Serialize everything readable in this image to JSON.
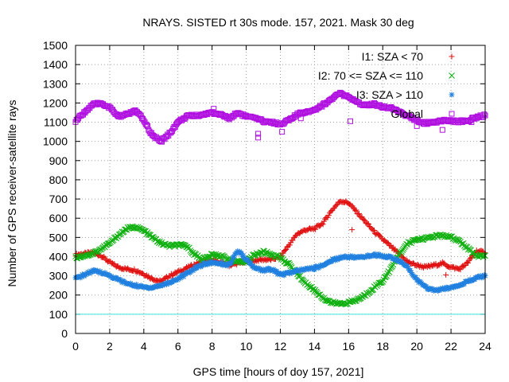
{
  "chart_data": {
    "type": "scatter",
    "title": "NRAYS. SISTED rt 30s mode. 157, 2021. Mask 30 deg",
    "xlabel": "GPS time [hours of doy 157, 2021]",
    "ylabel": "Number of GPS receiver-satellite rays",
    "xlim": [
      0,
      24
    ],
    "ylim": [
      0,
      1500
    ],
    "x_ticks": [
      0,
      2,
      4,
      6,
      8,
      10,
      12,
      14,
      16,
      18,
      20,
      22,
      24
    ],
    "y_ticks": [
      0,
      100,
      200,
      300,
      400,
      500,
      600,
      700,
      800,
      900,
      1000,
      1100,
      1200,
      1300,
      1400,
      1500
    ],
    "grid": true,
    "legend_position": "top-right",
    "reference_line": {
      "y": 100,
      "color": "#40e0e0"
    },
    "series": [
      {
        "name": "I1: SZA < 70",
        "marker": "+",
        "color": "#e01010",
        "points": [
          [
            0,
            410
          ],
          [
            0.5,
            415
          ],
          [
            1,
            420
          ],
          [
            1.5,
            405
          ],
          [
            2,
            370
          ],
          [
            2.5,
            345
          ],
          [
            3,
            335
          ],
          [
            3.5,
            330
          ],
          [
            4,
            310
          ],
          [
            4.5,
            285
          ],
          [
            5,
            270
          ],
          [
            5.5,
            300
          ],
          [
            6,
            320
          ],
          [
            6.5,
            340
          ],
          [
            7,
            360
          ],
          [
            7.5,
            375
          ],
          [
            8,
            380
          ],
          [
            8.5,
            370
          ],
          [
            9,
            355
          ],
          [
            9.5,
            365
          ],
          [
            10,
            375
          ],
          [
            10.5,
            380
          ],
          [
            11,
            385
          ],
          [
            11.5,
            385
          ],
          [
            12,
            400
          ],
          [
            12.5,
            460
          ],
          [
            13,
            520
          ],
          [
            13.5,
            540
          ],
          [
            14,
            545
          ],
          [
            14.5,
            575
          ],
          [
            15,
            640
          ],
          [
            15.5,
            690
          ],
          [
            16,
            680
          ],
          [
            16.5,
            630
          ],
          [
            17,
            580
          ],
          [
            17.5,
            530
          ],
          [
            18,
            490
          ],
          [
            18.5,
            450
          ],
          [
            19,
            410
          ],
          [
            19.5,
            370
          ],
          [
            20,
            355
          ],
          [
            20.5,
            345
          ],
          [
            21,
            355
          ],
          [
            21.5,
            365
          ],
          [
            22,
            345
          ],
          [
            22.5,
            335
          ],
          [
            23,
            370
          ],
          [
            23.5,
            430
          ],
          [
            24,
            420
          ]
        ],
        "outliers": [
          [
            16.2,
            540
          ],
          [
            21.7,
            305
          ]
        ]
      },
      {
        "name": "I2: 70 <= SZA <= 110",
        "marker": "x",
        "color": "#10b010",
        "points": [
          [
            0,
            395
          ],
          [
            0.5,
            405
          ],
          [
            1,
            415
          ],
          [
            1.5,
            440
          ],
          [
            2,
            470
          ],
          [
            2.5,
            510
          ],
          [
            3,
            545
          ],
          [
            3.5,
            555
          ],
          [
            4,
            535
          ],
          [
            4.5,
            500
          ],
          [
            5,
            470
          ],
          [
            5.5,
            455
          ],
          [
            6,
            460
          ],
          [
            6.5,
            455
          ],
          [
            7,
            410
          ],
          [
            7.5,
            385
          ],
          [
            8,
            410
          ],
          [
            8.5,
            405
          ],
          [
            9,
            385
          ],
          [
            9.5,
            370
          ],
          [
            10,
            375
          ],
          [
            10.5,
            410
          ],
          [
            11,
            425
          ],
          [
            11.5,
            410
          ],
          [
            12,
            395
          ],
          [
            12.5,
            360
          ],
          [
            13,
            310
          ],
          [
            13.5,
            260
          ],
          [
            14,
            225
          ],
          [
            14.5,
            185
          ],
          [
            15,
            160
          ],
          [
            15.5,
            155
          ],
          [
            16,
            160
          ],
          [
            16.5,
            175
          ],
          [
            17,
            200
          ],
          [
            17.5,
            240
          ],
          [
            18,
            275
          ],
          [
            18.5,
            340
          ],
          [
            19,
            420
          ],
          [
            19.5,
            470
          ],
          [
            20,
            490
          ],
          [
            20.5,
            495
          ],
          [
            21,
            505
          ],
          [
            21.5,
            510
          ],
          [
            22,
            500
          ],
          [
            22.5,
            480
          ],
          [
            23,
            440
          ],
          [
            23.5,
            405
          ],
          [
            24,
            405
          ]
        ]
      },
      {
        "name": "I3: SZA > 110",
        "marker": "*",
        "color": "#2080e0",
        "points": [
          [
            0,
            285
          ],
          [
            0.5,
            305
          ],
          [
            1,
            325
          ],
          [
            1.5,
            320
          ],
          [
            2,
            300
          ],
          [
            2.5,
            280
          ],
          [
            3,
            260
          ],
          [
            3.5,
            250
          ],
          [
            4,
            240
          ],
          [
            4.5,
            240
          ],
          [
            5,
            250
          ],
          [
            5.5,
            265
          ],
          [
            6,
            285
          ],
          [
            6.5,
            310
          ],
          [
            7,
            340
          ],
          [
            7.5,
            360
          ],
          [
            8,
            370
          ],
          [
            8.5,
            365
          ],
          [
            9,
            355
          ],
          [
            9.5,
            430
          ],
          [
            10,
            385
          ],
          [
            10.5,
            340
          ],
          [
            11,
            330
          ],
          [
            11.5,
            335
          ],
          [
            12,
            305
          ],
          [
            12.5,
            315
          ],
          [
            13,
            325
          ],
          [
            13.5,
            335
          ],
          [
            14,
            340
          ],
          [
            14.5,
            355
          ],
          [
            15,
            380
          ],
          [
            15.5,
            395
          ],
          [
            16,
            400
          ],
          [
            16.5,
            395
          ],
          [
            17,
            400
          ],
          [
            17.5,
            410
          ],
          [
            18,
            405
          ],
          [
            18.5,
            395
          ],
          [
            19,
            375
          ],
          [
            19.5,
            340
          ],
          [
            20,
            280
          ],
          [
            20.5,
            240
          ],
          [
            21,
            225
          ],
          [
            21.5,
            230
          ],
          [
            22,
            240
          ],
          [
            22.5,
            255
          ],
          [
            23,
            270
          ],
          [
            23.5,
            290
          ],
          [
            24,
            300
          ]
        ]
      },
      {
        "name": "Global",
        "marker": "square",
        "color": "#b010e0",
        "points": [
          [
            0,
            1105
          ],
          [
            0.5,
            1150
          ],
          [
            1,
            1190
          ],
          [
            1.5,
            1200
          ],
          [
            2,
            1175
          ],
          [
            2.5,
            1130
          ],
          [
            3,
            1140
          ],
          [
            3.5,
            1160
          ],
          [
            4,
            1110
          ],
          [
            4.5,
            1030
          ],
          [
            5,
            1000
          ],
          [
            5.5,
            1040
          ],
          [
            6,
            1100
          ],
          [
            6.5,
            1130
          ],
          [
            7,
            1135
          ],
          [
            7.5,
            1140
          ],
          [
            8,
            1150
          ],
          [
            8.5,
            1140
          ],
          [
            9,
            1120
          ],
          [
            9.5,
            1150
          ],
          [
            10,
            1130
          ],
          [
            10.5,
            1120
          ],
          [
            11,
            1105
          ],
          [
            11.5,
            1100
          ],
          [
            12,
            1090
          ],
          [
            12.5,
            1110
          ],
          [
            13,
            1140
          ],
          [
            13.5,
            1155
          ],
          [
            14,
            1165
          ],
          [
            14.5,
            1190
          ],
          [
            15,
            1220
          ],
          [
            15.5,
            1250
          ],
          [
            16,
            1230
          ],
          [
            16.5,
            1200
          ],
          [
            17,
            1190
          ],
          [
            17.5,
            1195
          ],
          [
            18,
            1180
          ],
          [
            18.5,
            1175
          ],
          [
            19,
            1150
          ],
          [
            19.5,
            1130
          ],
          [
            20,
            1110
          ],
          [
            20.5,
            1095
          ],
          [
            21,
            1100
          ],
          [
            21.5,
            1110
          ],
          [
            22,
            1105
          ],
          [
            22.5,
            1105
          ],
          [
            23,
            1110
          ],
          [
            23.5,
            1125
          ],
          [
            24,
            1135
          ]
        ],
        "outliers": [
          [
            10.7,
            1020
          ],
          [
            10.7,
            1040
          ],
          [
            12.1,
            1050
          ],
          [
            16.1,
            1105
          ],
          [
            20,
            1080
          ],
          [
            21.5,
            1060
          ],
          [
            8.1,
            1170
          ],
          [
            13.2,
            1120
          ],
          [
            9,
            1120
          ],
          [
            23.2,
            1100
          ]
        ]
      }
    ]
  }
}
